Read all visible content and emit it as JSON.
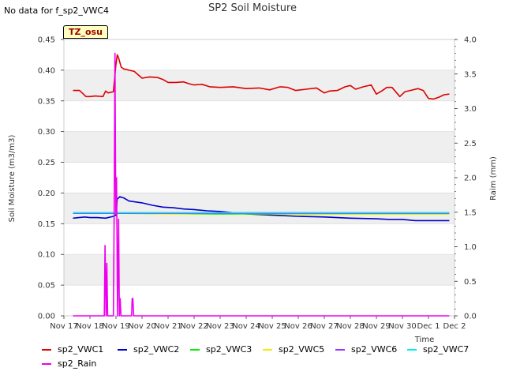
{
  "chart_data": {
    "type": "line",
    "title": "SP2 Soil Moisture",
    "no_data_note": "No data for f_sp2_VWC4",
    "tz_label": "TZ_osu",
    "xlabel": "Time",
    "ylabel": "Soil Moisture (m3/m3)",
    "y2label": "Raim (mm)",
    "x_ticks": [
      "Nov 17",
      "Nov 18",
      "Nov 19",
      "Nov 20",
      "Nov 21",
      "Nov 22",
      "Nov 23",
      "Nov 24",
      "Nov 25",
      "Nov 26",
      "Nov 27",
      "Nov 28",
      "Nov 29",
      "Nov 30",
      "Dec 1",
      "Dec 2"
    ],
    "xlim": [
      0,
      15
    ],
    "ylim": [
      0,
      0.45
    ],
    "y_ticks": [
      "0.00",
      "0.05",
      "0.10",
      "0.15",
      "0.20",
      "0.25",
      "0.30",
      "0.35",
      "0.40",
      "0.45"
    ],
    "y2lim": [
      0,
      4.0
    ],
    "y2_ticks": [
      "0.0",
      "0.5",
      "1.0",
      "1.5",
      "2.0",
      "2.5",
      "3.0",
      "3.5",
      "4.0"
    ],
    "series": [
      {
        "name": "sp2_VWC1",
        "color": "#dd0000",
        "axis": "left",
        "x": [
          0.35,
          0.6,
          0.85,
          1.0,
          1.2,
          1.5,
          1.6,
          1.7,
          1.9,
          2.0,
          2.05,
          2.1,
          2.2,
          2.3,
          2.5,
          2.7,
          3.0,
          3.3,
          3.6,
          3.8,
          4.0,
          4.3,
          4.6,
          4.8,
          5.0,
          5.3,
          5.6,
          6.0,
          6.5,
          7.0,
          7.5,
          7.9,
          8.3,
          8.6,
          8.9,
          9.3,
          9.7,
          10.0,
          10.2,
          10.5,
          10.8,
          11.0,
          11.2,
          11.5,
          11.8,
          12.0,
          12.2,
          12.4,
          12.6,
          12.9,
          13.1,
          13.3,
          13.6,
          13.8,
          14.0,
          14.2,
          14.4,
          14.6,
          14.8
        ],
        "values": [
          0.367,
          0.367,
          0.357,
          0.357,
          0.358,
          0.357,
          0.366,
          0.363,
          0.365,
          0.41,
          0.425,
          0.42,
          0.405,
          0.402,
          0.4,
          0.398,
          0.387,
          0.389,
          0.388,
          0.385,
          0.38,
          0.38,
          0.381,
          0.378,
          0.376,
          0.377,
          0.373,
          0.372,
          0.373,
          0.37,
          0.371,
          0.368,
          0.373,
          0.372,
          0.367,
          0.369,
          0.371,
          0.363,
          0.366,
          0.367,
          0.373,
          0.375,
          0.369,
          0.373,
          0.376,
          0.361,
          0.366,
          0.372,
          0.372,
          0.357,
          0.365,
          0.367,
          0.37,
          0.367,
          0.354,
          0.353,
          0.356,
          0.36,
          0.361
        ]
      },
      {
        "name": "sp2_VWC2",
        "color": "#0000cc",
        "axis": "left",
        "x": [
          0.35,
          0.8,
          1.0,
          1.3,
          1.6,
          1.9,
          2.0,
          2.05,
          2.15,
          2.3,
          2.5,
          3.0,
          3.4,
          3.8,
          4.2,
          4.6,
          5.0,
          5.5,
          6.0,
          7.0,
          8.0,
          9.0,
          10.0,
          11.0,
          12.0,
          12.5,
          13.0,
          13.5,
          14.0,
          14.5,
          14.8
        ],
        "values": [
          0.159,
          0.161,
          0.16,
          0.16,
          0.159,
          0.162,
          0.164,
          0.19,
          0.194,
          0.192,
          0.187,
          0.184,
          0.18,
          0.177,
          0.176,
          0.174,
          0.173,
          0.171,
          0.17,
          0.166,
          0.164,
          0.162,
          0.161,
          0.159,
          0.158,
          0.157,
          0.157,
          0.155,
          0.155,
          0.155,
          0.155
        ]
      },
      {
        "name": "sp2_VWC3",
        "color": "#00ee00",
        "axis": "left",
        "x": [
          0.35,
          2.0,
          5.0,
          8.0,
          11.0,
          14.8
        ],
        "values": [
          0.167,
          0.167,
          0.166,
          0.166,
          0.166,
          0.166
        ]
      },
      {
        "name": "sp2_VWC5",
        "color": "#eeee00",
        "axis": "left",
        "x": [
          0.35,
          2.0,
          4.0,
          6.0,
          9.0,
          12.0,
          14.8
        ],
        "values": [
          0.168,
          0.168,
          0.166,
          0.167,
          0.166,
          0.166,
          0.166
        ]
      },
      {
        "name": "sp2_VWC6",
        "color": "#9933ff",
        "axis": "left",
        "x": [
          0.35,
          14.8
        ],
        "values": [
          0.167,
          0.167
        ]
      },
      {
        "name": "sp2_VWC7",
        "color": "#00eeee",
        "axis": "left",
        "x": [
          0.35,
          14.8
        ],
        "values": [
          0.168,
          0.168
        ]
      },
      {
        "name": "sp2_Rain",
        "color": "#ee00ee",
        "axis": "right",
        "x": [
          0.35,
          1.55,
          1.58,
          1.62,
          1.65,
          1.68,
          1.72,
          1.9,
          1.93,
          1.96,
          1.99,
          2.02,
          2.06,
          2.1,
          2.13,
          2.16,
          2.19,
          2.22,
          2.6,
          2.62,
          2.65,
          2.68,
          14.8
        ],
        "values": [
          0.0,
          0.0,
          1.02,
          0.0,
          0.76,
          0.0,
          0.0,
          0.0,
          1.5,
          3.8,
          1.5,
          2.0,
          0.0,
          1.4,
          0.0,
          0.25,
          0.0,
          0.0,
          0.0,
          0.25,
          0.25,
          0.0,
          0.0
        ]
      }
    ]
  }
}
